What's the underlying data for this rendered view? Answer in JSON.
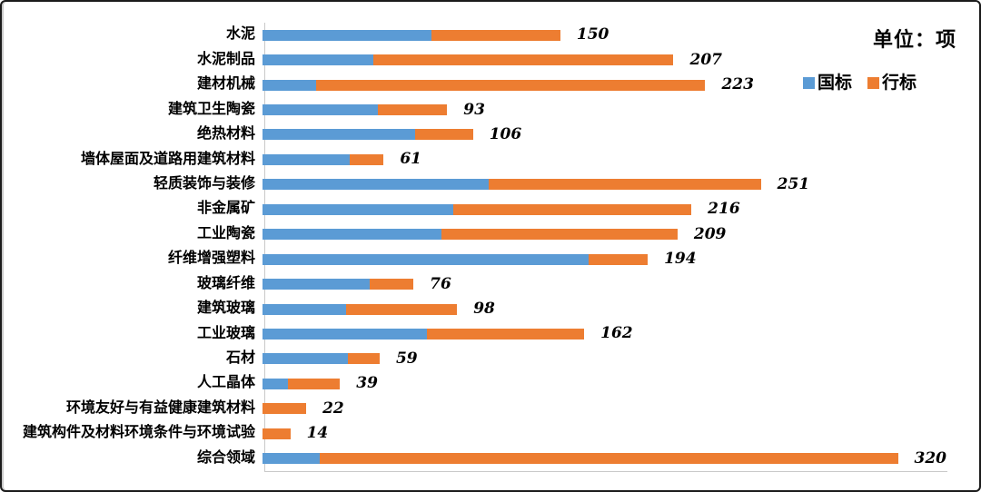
{
  "frame": {
    "unit_label": "单位：项"
  },
  "legend": {
    "items": [
      {
        "label": "国标",
        "color": "#5B9BD5"
      },
      {
        "label": "行标",
        "color": "#ED7D31"
      }
    ]
  },
  "chart_data": {
    "type": "bar",
    "orientation": "horizontal",
    "stacked": true,
    "title": "",
    "unit_label": "单位：项",
    "xlabel": "",
    "ylabel": "",
    "grid": false,
    "legend_position": "top-right",
    "value_axis_visible": false,
    "xlim": [
      0,
      343
    ],
    "categories": [
      "水泥",
      "水泥制品",
      "建材机械",
      "建筑卫生陶瓷",
      "绝热材料",
      "墙体屋面及道路用建筑材料",
      "轻质装饰与装修",
      "非金属矿",
      "工业陶瓷",
      "纤维增强塑料",
      "玻璃纤维",
      "建筑玻璃",
      "工业玻璃",
      "石材",
      "人工晶体",
      "环境友好与有益健康建筑材料",
      "建筑构件及材料环境条件与环境试验",
      "综合领域"
    ],
    "series": [
      {
        "name": "国标",
        "color": "#5B9BD5",
        "values": [
          85,
          56,
          27,
          58,
          77,
          44,
          114,
          96,
          90,
          164,
          54,
          42,
          83,
          43,
          13,
          0,
          0,
          29
        ]
      },
      {
        "name": "行标",
        "color": "#ED7D31",
        "values": [
          65,
          151,
          196,
          35,
          29,
          17,
          137,
          120,
          119,
          30,
          22,
          56,
          79,
          16,
          26,
          22,
          14,
          291
        ]
      }
    ],
    "totals": [
      150,
      207,
      223,
      93,
      106,
      61,
      251,
      216,
      209,
      194,
      76,
      98,
      162,
      59,
      39,
      22,
      14,
      320
    ]
  }
}
